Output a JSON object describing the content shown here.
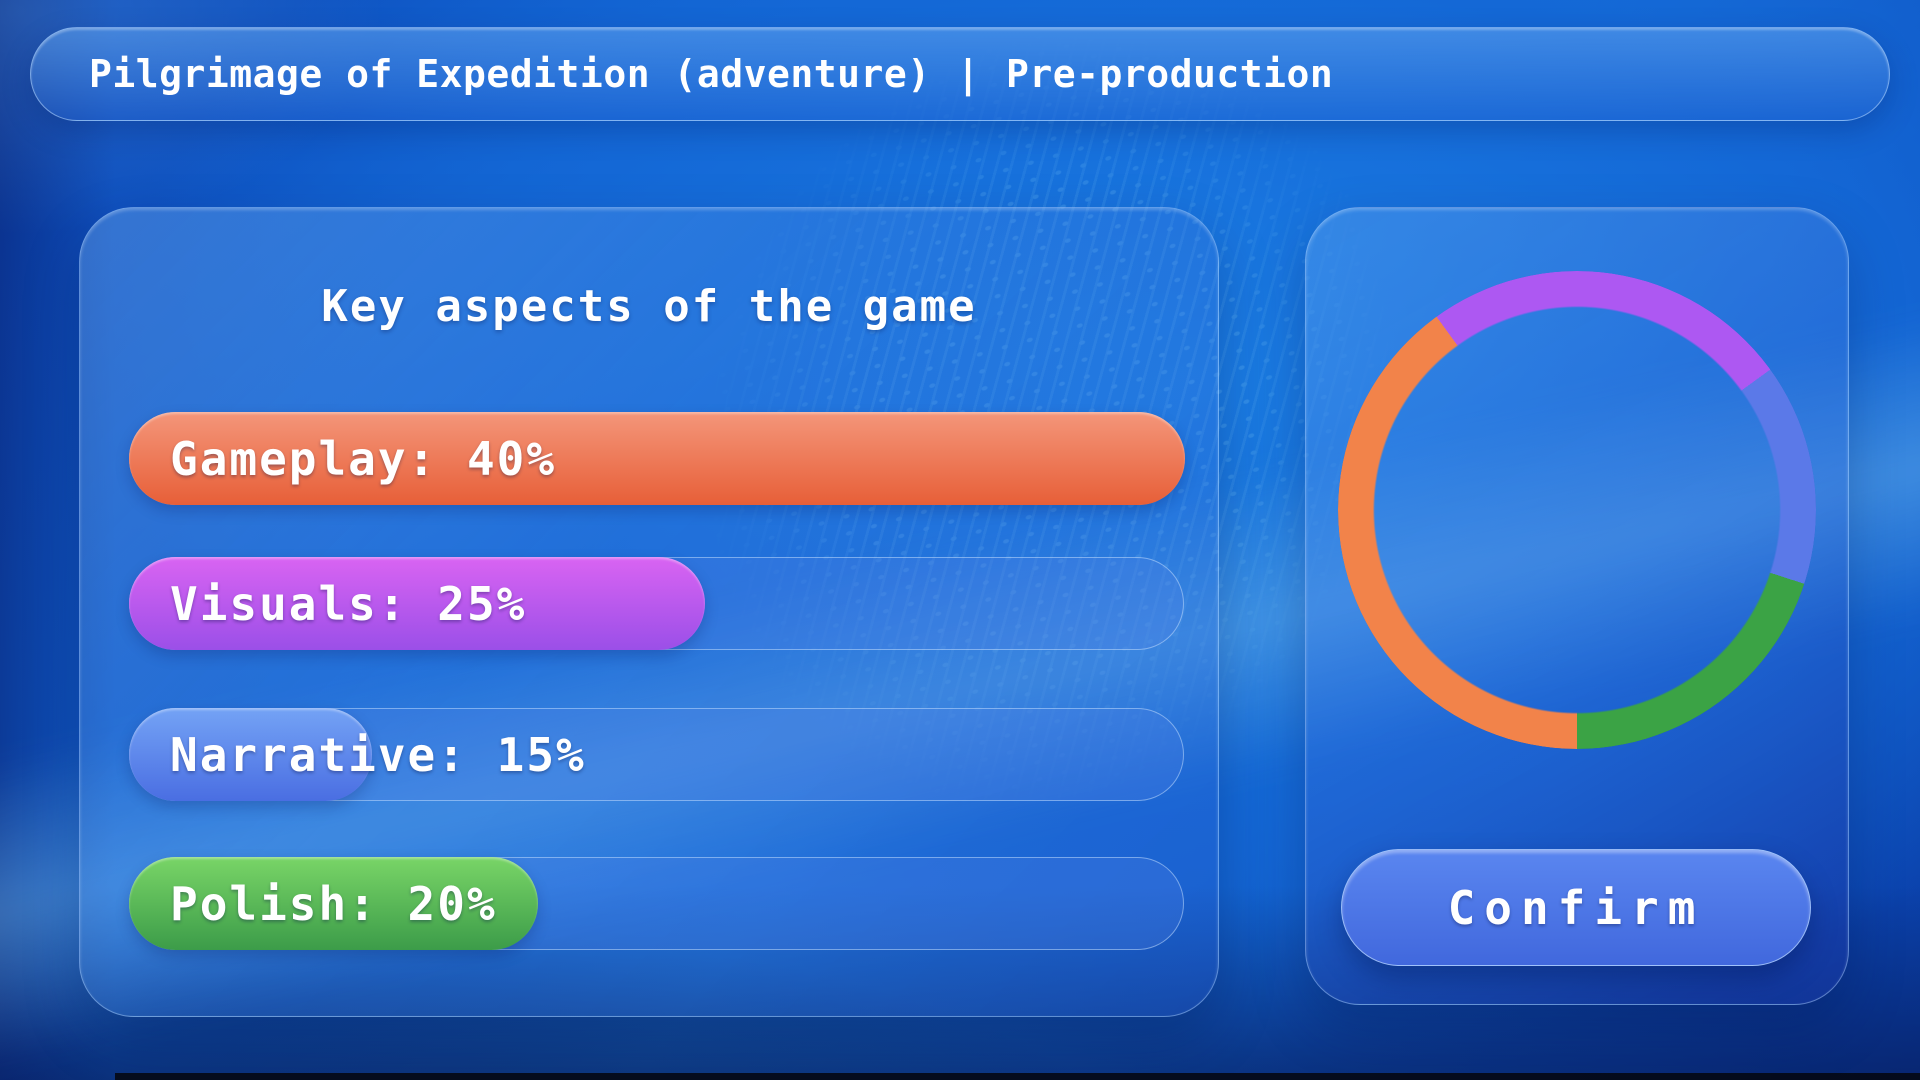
{
  "header": {
    "title": "Pilgrimage of Expedition (adventure)",
    "separator": "|",
    "stage": "Pre-production"
  },
  "aspects_panel": {
    "title": "Key aspects of the game",
    "bars": [
      {
        "name": "Gameplay",
        "percent": 40,
        "label": "Gameplay: 40%",
        "fill_fraction": 1.0,
        "fill_from": "#f4967a",
        "fill_to": "#e75f38"
      },
      {
        "name": "Visuals",
        "percent": 25,
        "label": "Visuals: 25%",
        "fill_fraction": 0.545,
        "fill_from": "#d964f2",
        "fill_to": "#9b4fe8"
      },
      {
        "name": "Narrative",
        "percent": 15,
        "label": "Narrative: 15%",
        "fill_fraction": 0.228,
        "fill_from": "#74a3f5",
        "fill_to": "#4a6ee2"
      },
      {
        "name": "Polish",
        "percent": 20,
        "label": "Polish: 20%",
        "fill_fraction": 0.386,
        "fill_from": "#79d567",
        "fill_to": "#3c9c49"
      }
    ]
  },
  "summary_panel": {
    "confirm_label": "Confirm"
  },
  "chart_data": [
    {
      "type": "pie",
      "variant": "donut",
      "categories": [
        "Gameplay",
        "Visuals",
        "Narrative",
        "Polish"
      ],
      "values": [
        40,
        25,
        15,
        20
      ],
      "colors": [
        "#f2834a",
        "#ad58f2",
        "#5b79e8",
        "#3ba345"
      ],
      "start_angle": "bottom",
      "direction": "clockwise",
      "legend_position": "none",
      "data_labels": "none",
      "ring_thickness_fraction": 0.15
    },
    {
      "type": "bar",
      "orientation": "horizontal",
      "title": "Key aspects of the game",
      "categories": [
        "Gameplay",
        "Visuals",
        "Narrative",
        "Polish"
      ],
      "values": [
        40,
        25,
        15,
        20
      ],
      "value_suffix": "%"
    }
  ]
}
